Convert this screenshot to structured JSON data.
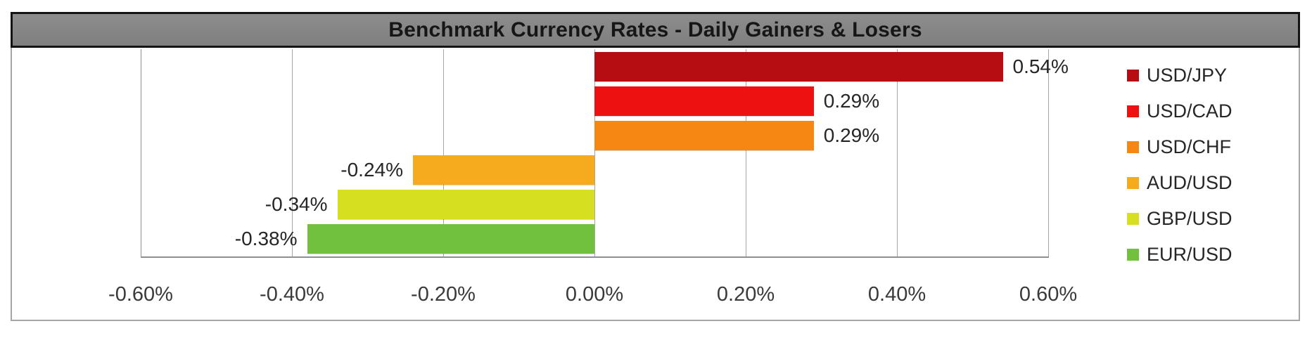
{
  "title_bar": {
    "title": "Benchmark Currency Rates - Daily Gainers & Losers",
    "background": "#828282",
    "border_color": "#141414"
  },
  "chart_data": {
    "type": "bar",
    "orientation": "horizontal",
    "title": "Benchmark Currency Rates - Daily Gainers & Losers",
    "categories": [
      "USD/JPY",
      "USD/CAD",
      "USD/CHF",
      "AUD/USD",
      "GBP/USD",
      "EUR/USD"
    ],
    "values": [
      0.54,
      0.29,
      0.29,
      -0.24,
      -0.34,
      -0.38
    ],
    "value_labels": [
      "0.54%",
      "0.29%",
      "0.29%",
      "-0.24%",
      "-0.34%",
      "-0.38%"
    ],
    "bar_colors": [
      "#b50d11",
      "#ee1111",
      "#f68712",
      "#f6ab1f",
      "#d6e021",
      "#72c13e"
    ],
    "xlabel": "",
    "ylabel": "",
    "xlim": [
      -0.6,
      0.6
    ],
    "xticks": [
      -0.6,
      -0.4,
      -0.2,
      0.0,
      0.2,
      0.4,
      0.6
    ],
    "xtick_labels": [
      "-0.60%",
      "-0.40%",
      "-0.20%",
      "0.00%",
      "0.20%",
      "0.40%",
      "0.60%"
    ],
    "grid": true,
    "gridline_color": "#a6a6a6",
    "legend_position": "right",
    "legend": [
      {
        "label": "USD/JPY",
        "color": "#b50d11"
      },
      {
        "label": "USD/CAD",
        "color": "#ee1111"
      },
      {
        "label": "USD/CHF",
        "color": "#f68712"
      },
      {
        "label": "AUD/USD",
        "color": "#f6ab1f"
      },
      {
        "label": "GBP/USD",
        "color": "#d6e021"
      },
      {
        "label": "EUR/USD",
        "color": "#72c13e"
      }
    ]
  }
}
